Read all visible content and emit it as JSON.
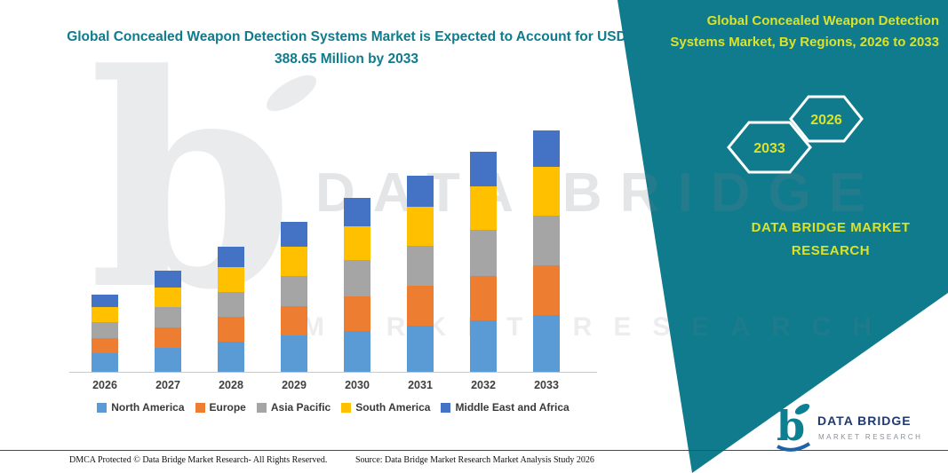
{
  "page": {
    "headline": "Global Concealed Weapon Detection Systems Market is Expected to Account for USD 388.65 Million by 2033"
  },
  "banner": {
    "title": "Global Concealed Weapon Detection Systems Market, By Regions, 2026 to 2033",
    "hexagons": [
      "2033",
      "2026"
    ],
    "brand": "DATA BRIDGE MARKET RESEARCH",
    "colors": {
      "background": "#0f7b8c",
      "accent_text": "#dce227",
      "hexagon_outline": "#ffffff"
    }
  },
  "watermark": {
    "text1": "DATA BRIDGE",
    "text2": "MARKET RESEARCH"
  },
  "chart_data": {
    "type": "bar",
    "stacked": true,
    "title": "Global Concealed Weapon Detection Systems Market is Expected to Account for USD 388.65 Million by 2033",
    "unit": "USD Million",
    "categories": [
      "2026",
      "2027",
      "2028",
      "2029",
      "2030",
      "2031",
      "2032",
      "2033"
    ],
    "series": [
      {
        "name": "North America",
        "color": "#5B9BD5",
        "values": [
          30,
          39,
          48,
          58,
          66,
          75,
          83,
          92
        ]
      },
      {
        "name": "Europe",
        "color": "#ED7D31",
        "values": [
          25,
          33,
          40,
          48,
          56,
          63,
          72,
          79
        ]
      },
      {
        "name": "Asia Pacific",
        "color": "#A5A5A5",
        "values": [
          25,
          32,
          40,
          49,
          58,
          65,
          73,
          81
        ]
      },
      {
        "name": "South America",
        "color": "#FFC000",
        "values": [
          24,
          32,
          40,
          47,
          55,
          63,
          70,
          78
        ]
      },
      {
        "name": "Middle East and Africa",
        "color": "#4472C4",
        "values": [
          21,
          27,
          33,
          39,
          45,
          50,
          56,
          58.65
        ]
      }
    ],
    "totals": [
      125,
      163,
      201,
      241,
      280,
      316,
      354,
      388.65
    ],
    "ylim": [
      0,
      400
    ],
    "grid": false,
    "y_axis_visible": false,
    "legend_position": "bottom"
  },
  "footer": {
    "left": "DMCA Protected © Data Bridge Market Research-  All Rights Reserved.",
    "source": "Source: Data Bridge Market Research  Market Analysis Study 2026"
  },
  "logo": {
    "name": "DATA BRIDGE",
    "subtitle": "MARKET RESEARCH"
  }
}
